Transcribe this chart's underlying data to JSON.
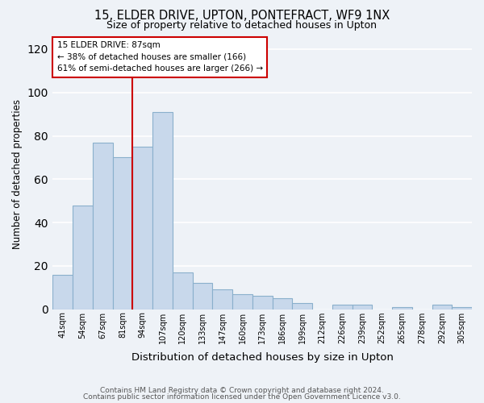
{
  "title": "15, ELDER DRIVE, UPTON, PONTEFRACT, WF9 1NX",
  "subtitle": "Size of property relative to detached houses in Upton",
  "xlabel": "Distribution of detached houses by size in Upton",
  "ylabel": "Number of detached properties",
  "bar_color": "#c8d8eb",
  "bar_edge_color": "#8ab0cc",
  "background_color": "#eef2f7",
  "grid_color": "#ffffff",
  "categories": [
    "41sqm",
    "54sqm",
    "67sqm",
    "81sqm",
    "94sqm",
    "107sqm",
    "120sqm",
    "133sqm",
    "147sqm",
    "160sqm",
    "173sqm",
    "186sqm",
    "199sqm",
    "212sqm",
    "226sqm",
    "239sqm",
    "252sqm",
    "265sqm",
    "278sqm",
    "292sqm",
    "305sqm"
  ],
  "values": [
    16,
    48,
    77,
    70,
    75,
    91,
    17,
    12,
    9,
    7,
    6,
    5,
    3,
    0,
    2,
    2,
    0,
    1,
    0,
    2,
    1
  ],
  "ylim": [
    0,
    125
  ],
  "yticks": [
    0,
    20,
    40,
    60,
    80,
    100,
    120
  ],
  "vline_x": 3.5,
  "vline_color": "#cc0000",
  "annotation_title": "15 ELDER DRIVE: 87sqm",
  "annotation_line1": "← 38% of detached houses are smaller (166)",
  "annotation_line2": "61% of semi-detached houses are larger (266) →",
  "annotation_box_color": "#ffffff",
  "annotation_box_edge": "#cc0000",
  "footer1": "Contains HM Land Registry data © Crown copyright and database right 2024.",
  "footer2": "Contains public sector information licensed under the Open Government Licence v3.0."
}
